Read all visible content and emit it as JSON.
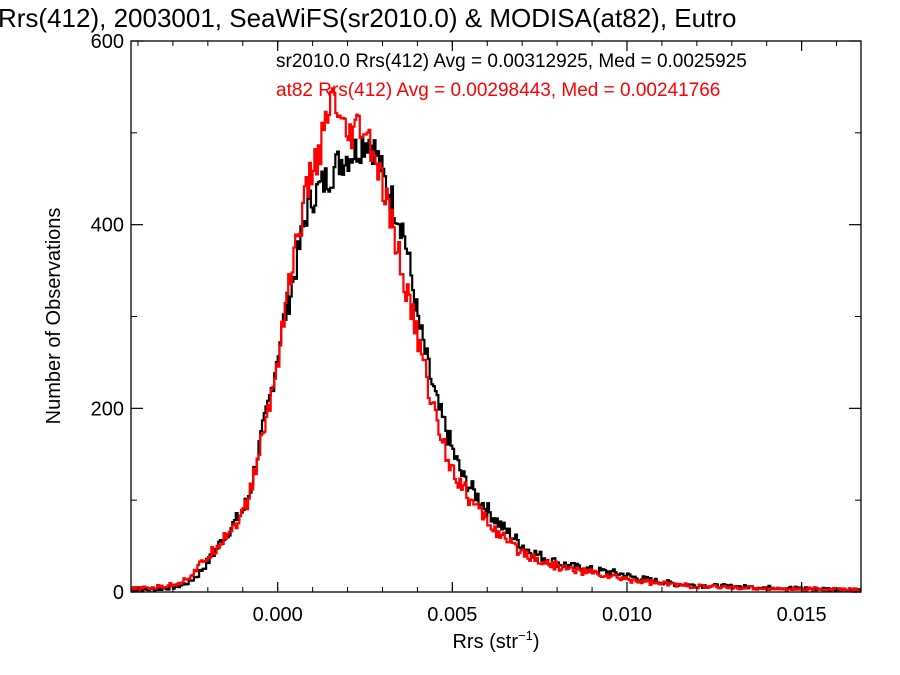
{
  "chart_data": {
    "type": "line",
    "step": true,
    "title": "Rrs(412), 2003001, SeaWiFS(sr2010.0) & MODISA(at82), Eutro",
    "xlabel_main": "Rrs (str",
    "xlabel_sup": "−1",
    "xlabel_end": ")",
    "ylabel": "Number of Observations",
    "xlim": [
      -0.0042,
      0.0167
    ],
    "ylim": [
      0,
      600
    ],
    "xticks": [
      {
        "value": 0.0,
        "label": "0.000"
      },
      {
        "value": 0.005,
        "label": "0.005"
      },
      {
        "value": 0.01,
        "label": "0.010"
      },
      {
        "value": 0.015,
        "label": "0.015"
      }
    ],
    "yticks": [
      {
        "value": 0,
        "label": "0"
      },
      {
        "value": 200,
        "label": "200"
      },
      {
        "value": 400,
        "label": "400"
      },
      {
        "value": 600,
        "label": "600"
      }
    ],
    "grid": false,
    "legend_position": "top",
    "series": [
      {
        "name": "sr2010.0",
        "legend": "sr2010.0 Rrs(412) Avg = 0.00312925, Med = 0.0025925",
        "color": "#000000",
        "points": [
          [
            -0.0042,
            2
          ],
          [
            -0.0035,
            3
          ],
          [
            -0.003,
            5
          ],
          [
            -0.0027,
            8
          ],
          [
            -0.0025,
            12
          ],
          [
            -0.0023,
            18
          ],
          [
            -0.0021,
            28
          ],
          [
            -0.0019,
            38
          ],
          [
            -0.0017,
            50
          ],
          [
            -0.0015,
            62
          ],
          [
            -0.0013,
            72
          ],
          [
            -0.001,
            88
          ],
          [
            -0.0008,
            108
          ],
          [
            -0.0006,
            145
          ],
          [
            -0.0004,
            180
          ],
          [
            -0.0002,
            215
          ],
          [
            0.0,
            260
          ],
          [
            0.0002,
            300
          ],
          [
            0.0004,
            330
          ],
          [
            0.0006,
            370
          ],
          [
            0.0008,
            410
          ],
          [
            0.001,
            430
          ],
          [
            0.0012,
            440
          ],
          [
            0.0014,
            450
          ],
          [
            0.0016,
            460
          ],
          [
            0.0018,
            470
          ],
          [
            0.002,
            475
          ],
          [
            0.0022,
            480
          ],
          [
            0.0024,
            488
          ],
          [
            0.0026,
            495
          ],
          [
            0.0028,
            480
          ],
          [
            0.003,
            455
          ],
          [
            0.0032,
            435
          ],
          [
            0.0034,
            415
          ],
          [
            0.0036,
            395
          ],
          [
            0.0038,
            350
          ],
          [
            0.004,
            300
          ],
          [
            0.0042,
            265
          ],
          [
            0.0044,
            230
          ],
          [
            0.0046,
            200
          ],
          [
            0.0048,
            180
          ],
          [
            0.005,
            155
          ],
          [
            0.0053,
            125
          ],
          [
            0.0056,
            110
          ],
          [
            0.006,
            90
          ],
          [
            0.0064,
            72
          ],
          [
            0.0068,
            58
          ],
          [
            0.0072,
            45
          ],
          [
            0.0076,
            38
          ],
          [
            0.008,
            32
          ],
          [
            0.0085,
            27
          ],
          [
            0.009,
            24
          ],
          [
            0.0094,
            22
          ],
          [
            0.0098,
            20
          ],
          [
            0.0102,
            16
          ],
          [
            0.0108,
            12
          ],
          [
            0.0114,
            9
          ],
          [
            0.012,
            7
          ],
          [
            0.013,
            6
          ],
          [
            0.014,
            5
          ],
          [
            0.015,
            4
          ],
          [
            0.016,
            3
          ],
          [
            0.0167,
            2
          ]
        ]
      },
      {
        "name": "at82",
        "legend": "at82 Rrs(412) Avg = 0.00298443, Med = 0.00241766",
        "color": "#ff0000",
        "points": [
          [
            -0.0042,
            3
          ],
          [
            -0.0035,
            5
          ],
          [
            -0.003,
            8
          ],
          [
            -0.0027,
            12
          ],
          [
            -0.0025,
            18
          ],
          [
            -0.0023,
            25
          ],
          [
            -0.0021,
            35
          ],
          [
            -0.0019,
            42
          ],
          [
            -0.0017,
            52
          ],
          [
            -0.0015,
            62
          ],
          [
            -0.0013,
            70
          ],
          [
            -0.001,
            85
          ],
          [
            -0.0008,
            105
          ],
          [
            -0.0006,
            140
          ],
          [
            -0.0004,
            175
          ],
          [
            -0.0002,
            210
          ],
          [
            0.0,
            250
          ],
          [
            0.0002,
            310
          ],
          [
            0.0004,
            350
          ],
          [
            0.0006,
            390
          ],
          [
            0.0008,
            430
          ],
          [
            0.001,
            460
          ],
          [
            0.0012,
            480
          ],
          [
            0.0014,
            510
          ],
          [
            0.0016,
            540
          ],
          [
            0.0018,
            505
          ],
          [
            0.002,
            490
          ],
          [
            0.0022,
            500
          ],
          [
            0.0024,
            505
          ],
          [
            0.0026,
            490
          ],
          [
            0.0028,
            470
          ],
          [
            0.003,
            440
          ],
          [
            0.0032,
            410
          ],
          [
            0.0034,
            380
          ],
          [
            0.0036,
            340
          ],
          [
            0.0038,
            310
          ],
          [
            0.004,
            280
          ],
          [
            0.0042,
            245
          ],
          [
            0.0044,
            210
          ],
          [
            0.0046,
            180
          ],
          [
            0.0048,
            155
          ],
          [
            0.005,
            135
          ],
          [
            0.0053,
            115
          ],
          [
            0.0056,
            95
          ],
          [
            0.006,
            78
          ],
          [
            0.0064,
            60
          ],
          [
            0.0068,
            48
          ],
          [
            0.0072,
            40
          ],
          [
            0.0076,
            33
          ],
          [
            0.008,
            28
          ],
          [
            0.0085,
            24
          ],
          [
            0.009,
            21
          ],
          [
            0.0094,
            18
          ],
          [
            0.0098,
            15
          ],
          [
            0.0102,
            13
          ],
          [
            0.0108,
            10
          ],
          [
            0.0114,
            8
          ],
          [
            0.012,
            6
          ],
          [
            0.013,
            5
          ],
          [
            0.014,
            4
          ],
          [
            0.015,
            3
          ],
          [
            0.016,
            3
          ],
          [
            0.0167,
            2
          ]
        ]
      }
    ]
  }
}
